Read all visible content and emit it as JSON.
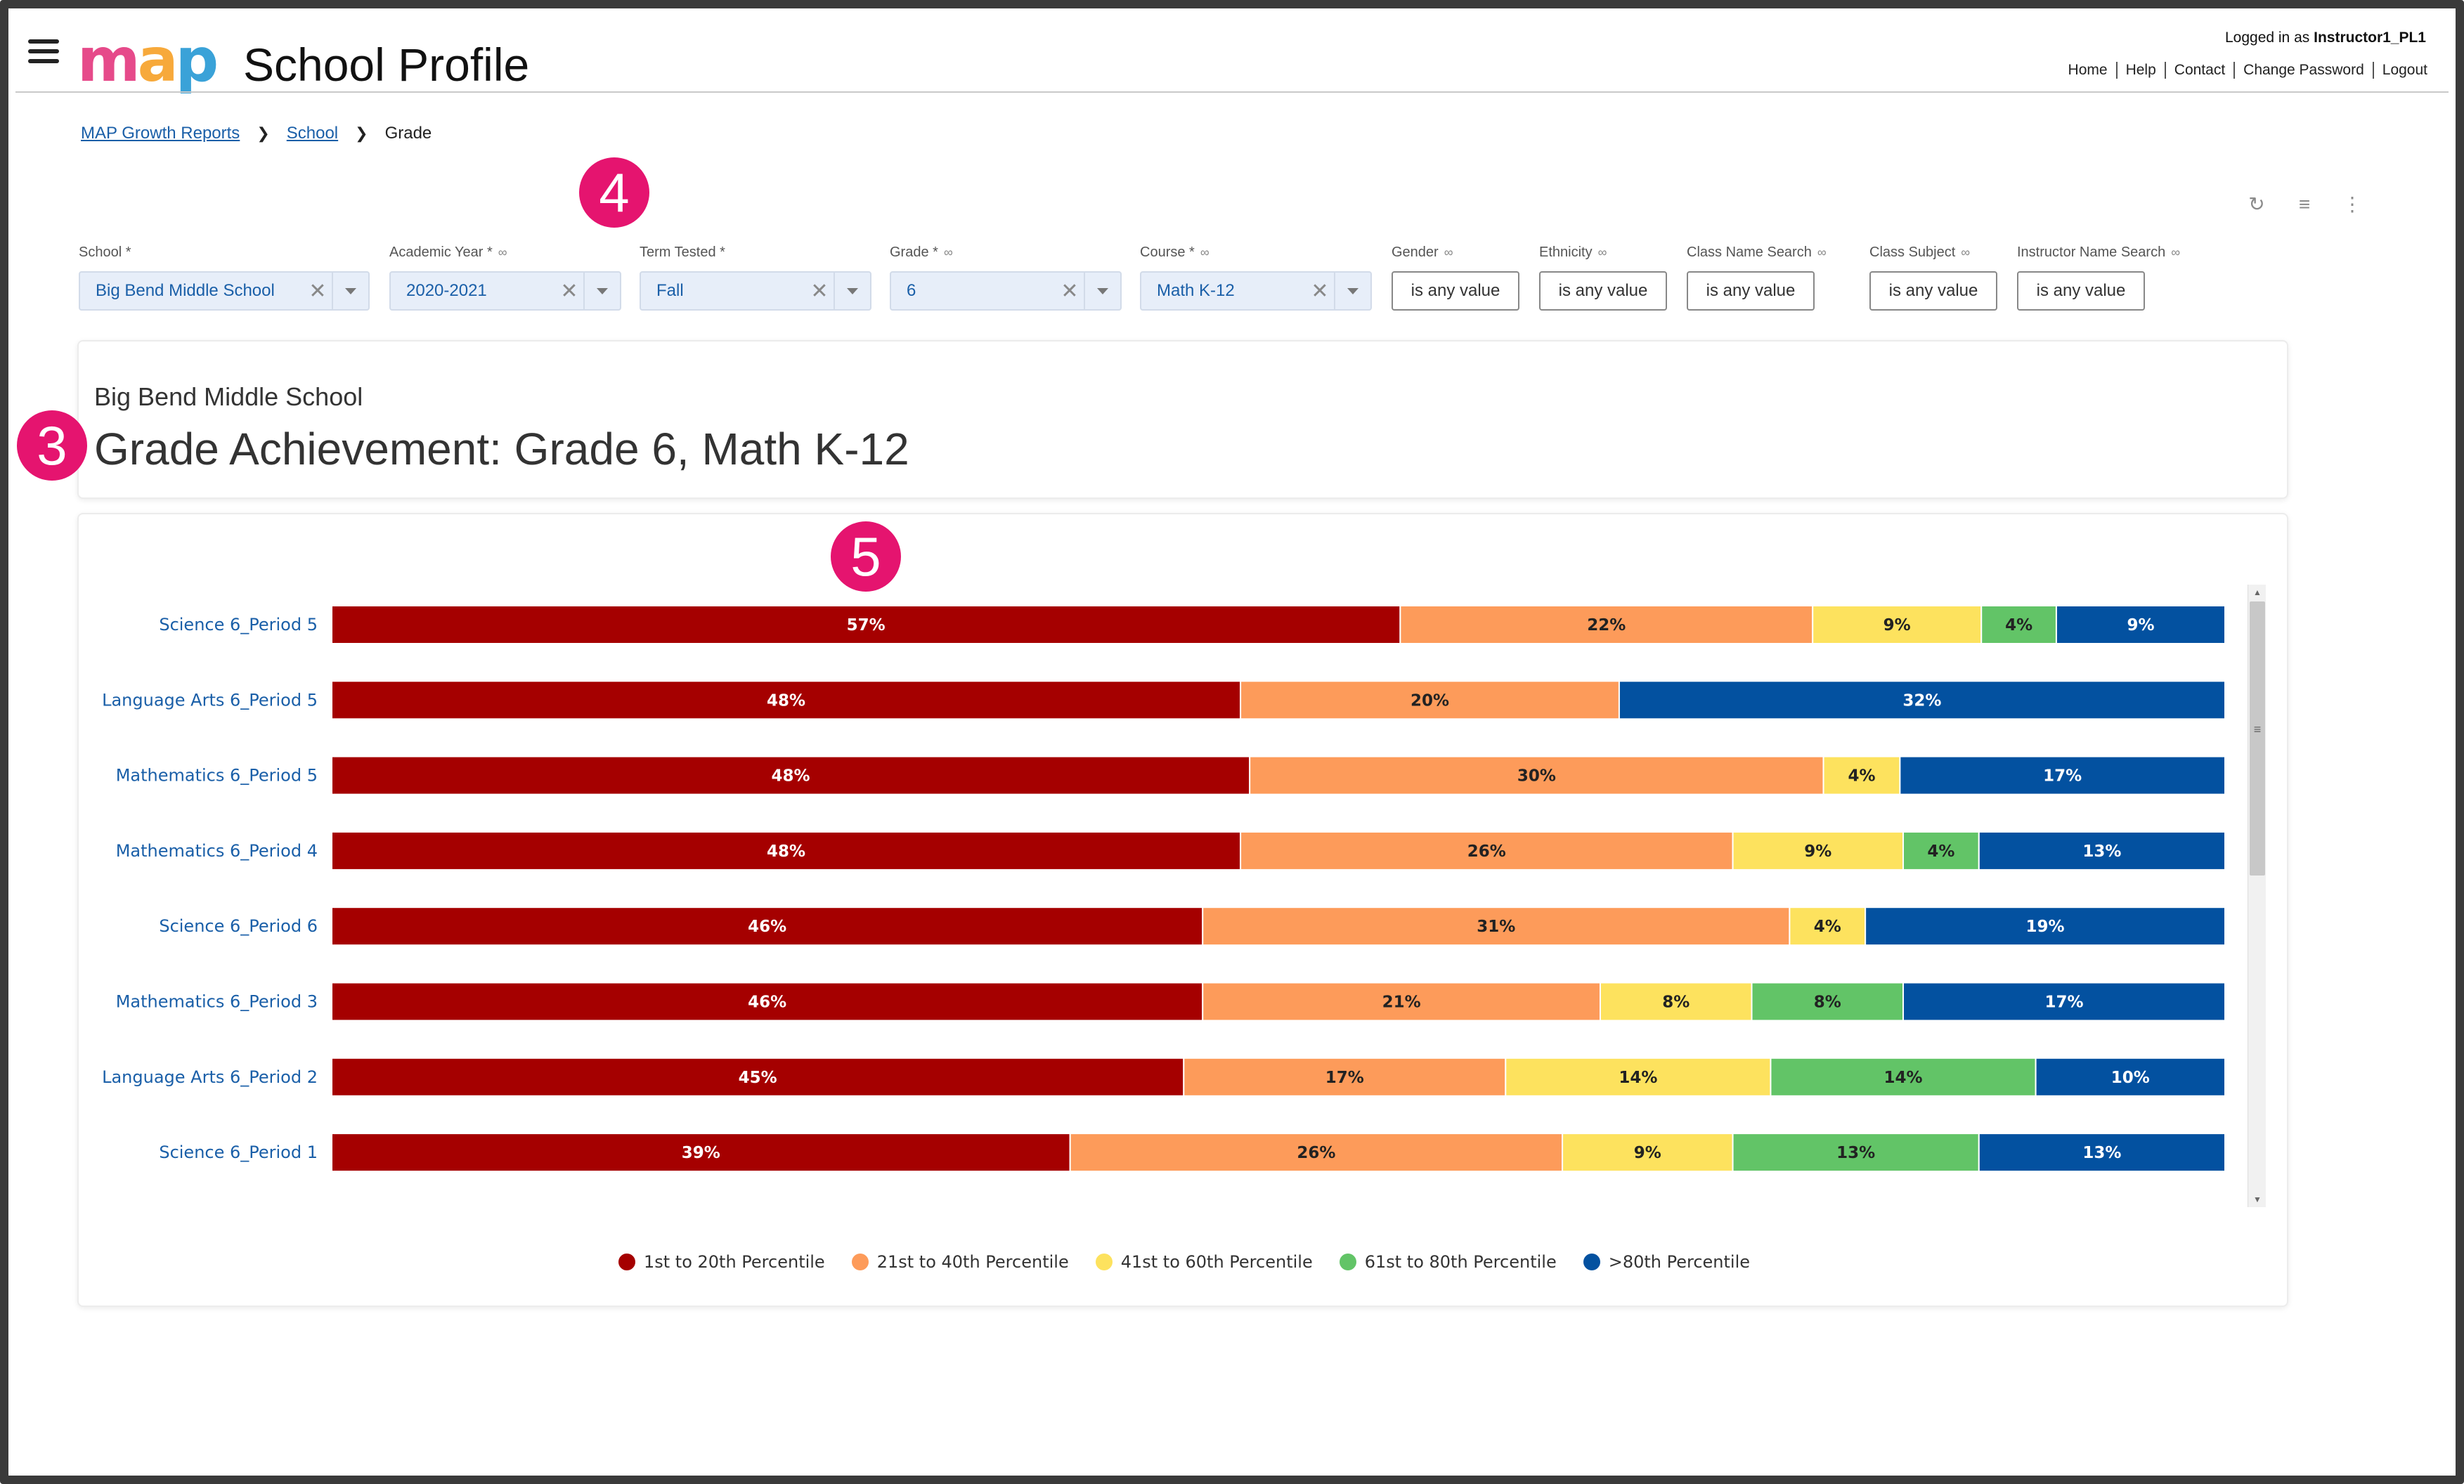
{
  "header": {
    "app_title": "School Profile",
    "login_prefix": "Logged in as",
    "username": "Instructor1_PL1",
    "links": [
      "Home",
      "Help",
      "Contact",
      "Change Password",
      "Logout"
    ]
  },
  "breadcrumb": {
    "items": [
      "MAP Growth Reports",
      "School"
    ],
    "current": "Grade"
  },
  "callouts": [
    "3",
    "4",
    "5"
  ],
  "filters": {
    "school": {
      "label": "School *",
      "value": "Big Bend Middle School"
    },
    "academic_year": {
      "label": "Academic Year *",
      "value": "2020-2021"
    },
    "term_tested": {
      "label": "Term Tested *",
      "value": "Fall"
    },
    "grade": {
      "label": "Grade *",
      "value": "6"
    },
    "course": {
      "label": "Course *",
      "value": "Math K-12"
    },
    "gender": {
      "label": "Gender",
      "value": "is any value"
    },
    "ethnicity": {
      "label": "Ethnicity",
      "value": "is any value"
    },
    "class_name_search": {
      "label": "Class Name Search",
      "value": "is any value"
    },
    "class_subject": {
      "label": "Class Subject",
      "value": "is any value"
    },
    "instructor_name_search": {
      "label": "Instructor Name Search",
      "value": "is any value"
    }
  },
  "report": {
    "school_name": "Big Bend Middle School",
    "heading": "Grade Achievement: Grade 6, Math K-12"
  },
  "chart_data": {
    "type": "bar",
    "orientation": "horizontal",
    "stacked": true,
    "normalized_100": true,
    "categories": [
      "Science 6_Period 5",
      "Language Arts 6_Period 5",
      "Mathematics 6_Period 5",
      "Mathematics 6_Period 4",
      "Science 6_Period 6",
      "Mathematics 6_Period 3",
      "Language Arts 6_Period 2",
      "Science 6_Period 1"
    ],
    "series": [
      {
        "name": "1st to 20th Percentile",
        "color": "#a50000",
        "values": [
          57,
          48,
          48,
          48,
          46,
          46,
          45,
          39
        ]
      },
      {
        "name": "21st to 40th Percentile",
        "color": "#fd9b5a",
        "values": [
          22,
          20,
          30,
          26,
          31,
          21,
          17,
          26
        ]
      },
      {
        "name": "41st to 60th Percentile",
        "color": "#fde25e",
        "values": [
          9,
          0,
          4,
          9,
          4,
          8,
          14,
          9
        ]
      },
      {
        "name": "61st to 80th Percentile",
        "color": "#62c467",
        "values": [
          4,
          0,
          0,
          4,
          0,
          8,
          14,
          13
        ]
      },
      {
        "name": ">80th Percentile",
        "color": "#0351a0",
        "values": [
          9,
          32,
          17,
          13,
          19,
          17,
          10,
          13
        ]
      }
    ],
    "legend_position": "bottom",
    "grid": false
  }
}
